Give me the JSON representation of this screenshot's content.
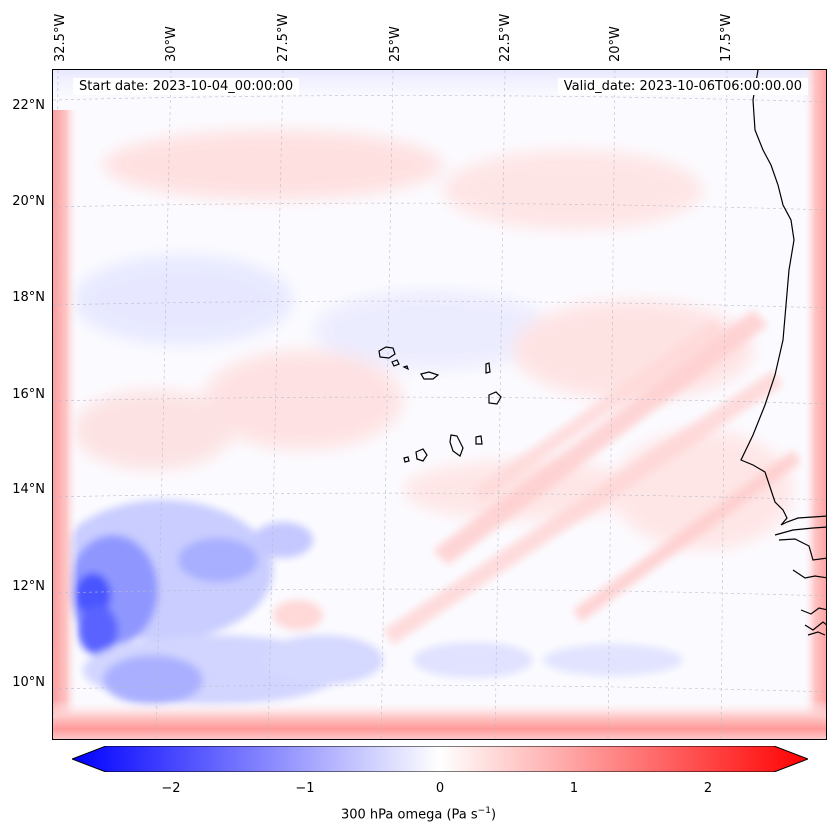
{
  "header": {
    "start_date": "Start date: 2023-10-04_00:00:00",
    "valid_date": "Valid_date: 2023-10-06T06:00:00.00"
  },
  "axes": {
    "longitude_ticks": [
      "32.5°W",
      "30°W",
      "27.5°W",
      "25°W",
      "22.5°W",
      "20°W",
      "17.5°W"
    ],
    "latitude_ticks": [
      "22°N",
      "20°N",
      "18°N",
      "16°N",
      "14°N",
      "12°N",
      "10°N"
    ]
  },
  "colorbar": {
    "ticks": [
      "−2",
      "−1",
      "0",
      "1",
      "2"
    ],
    "label": "300 hPa omega (Pa s",
    "label_superscript": "−1",
    "label_suffix": ")",
    "colors": {
      "min": "#0000ff",
      "mid": "#ffffff",
      "max": "#ff0000"
    }
  },
  "map": {
    "field": "300 hPa omega",
    "color_scale": "diverging blue-white-red",
    "features": [
      "Cape Verde islands",
      "West African coastline"
    ],
    "gridlines": true
  }
}
